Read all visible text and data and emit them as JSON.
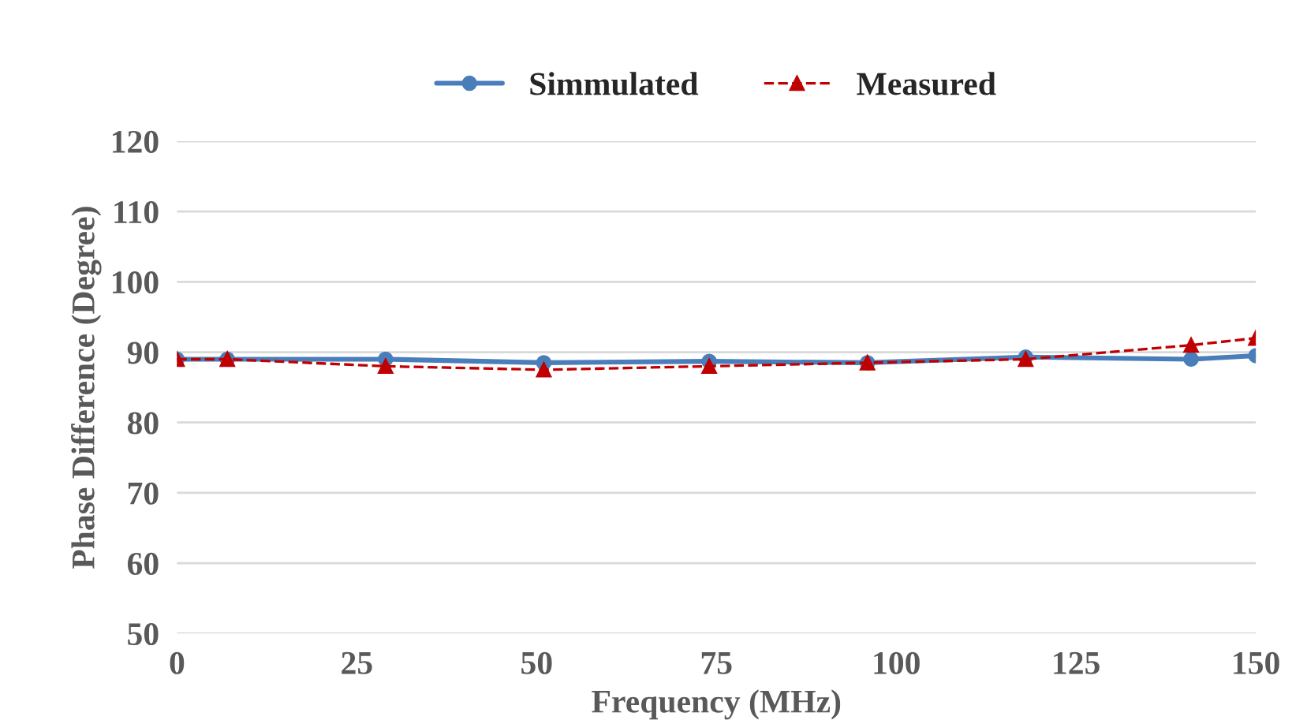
{
  "chart_data": {
    "type": "line",
    "xlabel": "Frequency (MHz)",
    "ylabel": "Phase Difference (Degree)",
    "xlim": [
      0,
      150
    ],
    "xticks": [
      0,
      25,
      50,
      75,
      100,
      125,
      150
    ],
    "ylim": [
      50,
      120
    ],
    "yticks": [
      50,
      60,
      70,
      80,
      90,
      100,
      110,
      120
    ],
    "grid": "y",
    "legend": "top",
    "series": [
      {
        "name": "Simmulated",
        "color": "#4a7ebb",
        "marker": "circle",
        "line_style": "solid",
        "x": [
          0,
          7,
          29,
          51,
          74,
          96,
          118,
          141,
          150
        ],
        "values": [
          89,
          89,
          89,
          88.5,
          88.7,
          88.5,
          89.3,
          89,
          89.5
        ]
      },
      {
        "name": "Measured",
        "color": "#c00000",
        "marker": "triangle",
        "line_style": "dashed",
        "x": [
          0,
          7,
          29,
          51,
          74,
          96,
          118,
          141,
          150
        ],
        "values": [
          89,
          89,
          88,
          87.5,
          88,
          88.5,
          89,
          91,
          92
        ]
      }
    ]
  }
}
